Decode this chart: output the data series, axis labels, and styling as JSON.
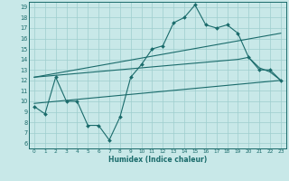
{
  "xlabel": "Humidex (Indice chaleur)",
  "bg_color": "#c8e8e8",
  "grid_color": "#9ecece",
  "line_color": "#1a6b6b",
  "xlim": [
    -0.5,
    23.5
  ],
  "ylim": [
    5.5,
    19.5
  ],
  "xticks": [
    0,
    1,
    2,
    3,
    4,
    5,
    6,
    7,
    8,
    9,
    10,
    11,
    12,
    13,
    14,
    15,
    16,
    17,
    18,
    19,
    20,
    21,
    22,
    23
  ],
  "yticks": [
    6,
    7,
    8,
    9,
    10,
    11,
    12,
    13,
    14,
    15,
    16,
    17,
    18,
    19
  ],
  "line1_x": [
    0,
    1,
    2,
    3,
    4,
    5,
    6,
    7,
    8,
    9,
    10,
    11,
    12,
    13,
    14,
    15,
    16,
    17,
    18,
    19,
    20,
    21,
    22,
    23
  ],
  "line1_y": [
    9.5,
    8.8,
    12.3,
    10.0,
    10.0,
    7.7,
    7.7,
    6.3,
    8.5,
    12.3,
    13.5,
    15.0,
    15.3,
    17.5,
    18.0,
    19.2,
    17.3,
    17.0,
    17.3,
    16.5,
    14.2,
    13.0,
    13.0,
    12.0
  ],
  "line2_x": [
    0,
    23
  ],
  "line2_y": [
    12.3,
    16.5
  ],
  "line3_x": [
    0,
    19,
    20,
    21,
    22,
    23
  ],
  "line3_y": [
    12.3,
    14.0,
    14.2,
    13.2,
    12.8,
    12.0
  ],
  "line4_x": [
    0,
    23
  ],
  "line4_y": [
    9.8,
    12.0
  ]
}
